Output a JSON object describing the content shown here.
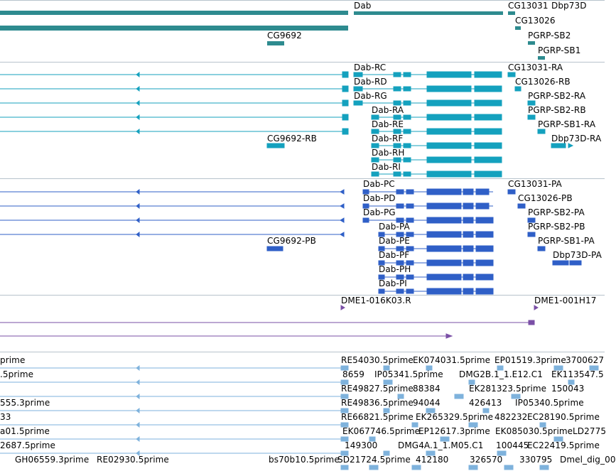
{
  "colors": {
    "gene": "#2e8b8f",
    "mrna": "#14a1be",
    "cds": "#2f5fc7",
    "bac": "#7a4fa6",
    "est": "#7eb2dc",
    "separator": "#b7c3cc"
  },
  "tracks": {
    "genes": {
      "labels": [
        "Dab",
        "CG13031",
        "Dbp73D",
        "CG13026",
        "CG9692",
        "PGRP-SB2",
        "PGRP-SB1"
      ]
    },
    "transcripts": {
      "labels": [
        "Dab-RC",
        "CG13031-RA",
        "Dab-RD",
        "CG13026-RB",
        "Dab-RG",
        "PGRP-SB2-RA",
        "Dab-RA",
        "PGRP-SB2-RB",
        "Dab-RE",
        "PGRP-SB1-RA",
        "CG9692-RB",
        "Dab-RF",
        "Dbp73D-RA",
        "Dab-RH",
        "Dab-RI"
      ]
    },
    "proteins": {
      "labels": [
        "Dab-PC",
        "CG13031-PA",
        "Dab-PD",
        "CG13026-PB",
        "Dab-PG",
        "PGRP-SB2-PA",
        "Dab-PA",
        "PGRP-SB2-PB",
        "Dab-PE",
        "CG9692-PB",
        "PGRP-SB1-PA",
        "Dab-PF",
        "Dbp73D-PA",
        "Dab-PH",
        "Dab-PI"
      ]
    },
    "bacs": {
      "labels": [
        "DME1-016K03.R",
        "DME1-001H17"
      ]
    },
    "ests": {
      "labels": [
        "prime",
        "RE54030.5prime",
        "EK074031.5prime",
        "EP01519.3prime",
        "3700627",
        ".5prime",
        "8659",
        "IP05341.5prime",
        "DMG2B.1_1.E12.C1",
        "EK113547.5",
        "RE49827.5prime",
        "88384",
        "EK281323.5prime",
        "150043",
        "555.3prime",
        "RE49836.5prime",
        "94044",
        "426413",
        "IP05340.5prime",
        "33",
        "RE66821.5prime",
        "EK265329.5prime",
        "482232",
        "EC28190.5prime",
        "a01.5prime",
        "EK067746.5prime",
        "EP12617.3prime",
        "EK085030.5prime",
        "LD2775",
        "2687.5prime",
        "149300",
        "DMG4A.1_1.M05.C1",
        "100445",
        "EC22419.5prime",
        "GH06559.3prime",
        "RE02930.5prime",
        "bs70b10.5prime",
        "SD21724.5prime",
        "412180",
        "326570",
        "330795",
        "Dmel_dig_00"
      ]
    }
  }
}
